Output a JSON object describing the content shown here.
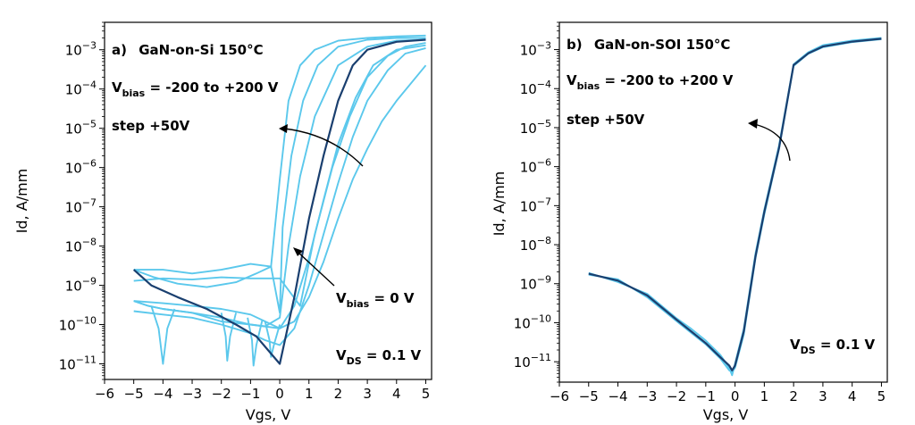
{
  "chart_data": [
    {
      "type": "line",
      "panel": "a",
      "xlabel": "Vgs, V",
      "ylabel": "Id, A/mm",
      "xlim": [
        -6,
        5.2
      ],
      "ylog": true,
      "ylim": [
        4e-12,
        0.005
      ],
      "xticks": [
        -6,
        -5,
        -4,
        -3,
        -2,
        -1,
        0,
        1,
        2,
        3,
        4,
        5
      ],
      "yticks": [
        {
          "value": 1e-11,
          "base": "10",
          "exp": "−11"
        },
        {
          "value": 1e-10,
          "base": "10",
          "exp": "−10"
        },
        {
          "value": 1e-09,
          "base": "10",
          "exp": "−9"
        },
        {
          "value": 1e-08,
          "base": "10",
          "exp": "−8"
        },
        {
          "value": 1e-07,
          "base": "10",
          "exp": "−7"
        },
        {
          "value": 1e-06,
          "base": "10",
          "exp": "−6"
        },
        {
          "value": 1e-05,
          "base": "10",
          "exp": "−5"
        },
        {
          "value": 0.0001,
          "base": "10",
          "exp": "−4"
        },
        {
          "value": 0.001,
          "base": "10",
          "exp": "−3"
        }
      ],
      "annotations": {
        "title_prefix": "a)",
        "title": "GaN-on-Si  150°C",
        "vbias_main": "V",
        "vbias_sub": "bias",
        "vbias_range": " = -200 to +200 V",
        "step": "step +50V",
        "vbias0_main": "V",
        "vbias0_sub": "bias",
        "vbias0_value": " = 0 V",
        "vds_main": "V",
        "vds_sub": "DS",
        "vds_value": " = 0.1 V"
      },
      "colors": {
        "light": "#5bc8ec",
        "dark": "#1a3f6f"
      },
      "series": [
        {
          "x": [
            -5,
            -4.3,
            -3.5,
            -2.5,
            -1.5,
            -0.8,
            -0.3,
            0,
            0.3,
            0.7,
            1.2,
            2,
            3,
            4,
            5
          ],
          "y": [
            2.5e-09,
            1.6e-09,
            1.1e-09,
            9e-10,
            1.2e-09,
            2e-09,
            3e-09,
            5e-07,
            5e-05,
            0.0004,
            0.001,
            0.0017,
            0.002,
            0.0022,
            0.0023
          ],
          "tone": "light"
        },
        {
          "x": [
            -5,
            -4,
            -3,
            -2,
            -1,
            -0.3,
            0,
            0.1,
            0.4,
            0.8,
            1.3,
            2,
            3,
            4,
            5
          ],
          "y": [
            2.5e-09,
            2.5e-09,
            2e-09,
            2.5e-09,
            3.5e-09,
            3e-09,
            2e-10,
            3e-08,
            2e-06,
            5e-05,
            0.0004,
            0.0012,
            0.0018,
            0.002,
            0.002
          ],
          "tone": "light"
        },
        {
          "x": [
            -5,
            -4.5,
            -4,
            -3,
            -2,
            -1,
            -0.5,
            0,
            0.3,
            0.7,
            1.2,
            2,
            3,
            4,
            5
          ],
          "y": [
            4e-10,
            3e-10,
            2.5e-10,
            2e-10,
            1.2e-10,
            1e-10,
            9e-11,
            1.5e-10,
            1e-08,
            6e-07,
            2e-05,
            0.0004,
            0.0012,
            0.0017,
            0.0018
          ],
          "tone": "light"
        },
        {
          "x": [
            -5,
            -4.4,
            -3.5,
            -2.5,
            -1.5,
            -0.8,
            0,
            0.5,
            1,
            1.5,
            2,
            2.5,
            3,
            4,
            5
          ],
          "y": [
            2.5e-09,
            1e-09,
            5e-10,
            2.5e-10,
            1e-10,
            5e-11,
            1e-11,
            5e-10,
            5e-08,
            2e-06,
            5e-05,
            0.0004,
            0.001,
            0.0016,
            0.0018
          ],
          "tone": "dark"
        },
        {
          "x": [
            -5,
            -4,
            -3,
            -2,
            -1,
            0,
            0.7,
            1.2,
            1.8,
            2.4,
            3,
            3.7,
            4.3,
            5
          ],
          "y": [
            1.3e-09,
            1.5e-09,
            1.4e-09,
            1.6e-09,
            1.5e-09,
            1.5e-09,
            3e-10,
            2e-08,
            1e-06,
            2e-05,
            0.0002,
            0.0007,
            0.0012,
            0.0015
          ],
          "tone": "light"
        },
        {
          "x": [
            -5,
            -4,
            -3,
            -2,
            -1,
            -0.5,
            0,
            0.5,
            1,
            1.5,
            2,
            2.6,
            3.2,
            4,
            5
          ],
          "y": [
            4e-10,
            3.5e-10,
            3e-10,
            2.5e-10,
            1.8e-10,
            1.2e-10,
            8e-11,
            3e-10,
            5e-09,
            1.5e-07,
            4e-06,
            6e-05,
            0.0004,
            0.001,
            0.0013
          ],
          "tone": "light"
        },
        {
          "x": [
            -5,
            -4,
            -3,
            -2,
            -1,
            -0.5,
            0,
            0.5,
            1,
            1.5,
            2,
            2.5,
            3,
            3.7,
            4.3,
            5
          ],
          "y": [
            2.2e-10,
            1.8e-10,
            1.5e-10,
            1e-10,
            6e-11,
            4e-11,
            3e-11,
            8e-11,
            1e-09,
            2e-08,
            4e-07,
            6e-06,
            5e-05,
            0.0003,
            0.0008,
            0.0011
          ],
          "tone": "light"
        },
        {
          "x": [
            -5,
            -4.5,
            -4,
            -3,
            -2,
            -1,
            0,
            0.5,
            1,
            1.5,
            2,
            2.5,
            3,
            3.5,
            4,
            5
          ],
          "y": [
            4e-10,
            3e-10,
            2.5e-10,
            2e-10,
            1.5e-10,
            1e-10,
            8e-11,
            1.2e-10,
            5e-10,
            4e-09,
            5e-08,
            5e-07,
            3e-06,
            1.5e-05,
            5e-05,
            0.0004
          ],
          "tone": "light"
        },
        {
          "x": [
            -4.4,
            -4.15,
            -4,
            -3.85,
            -3.6
          ],
          "y": [
            3e-10,
            8e-11,
            1e-11,
            8e-11,
            2.5e-10
          ],
          "tone": "light"
        },
        {
          "x": [
            -2,
            -1.85,
            -1.8,
            -1.7,
            -1.5
          ],
          "y": [
            2e-10,
            5e-11,
            1.2e-11,
            5e-11,
            2e-10
          ],
          "tone": "light"
        },
        {
          "x": [
            -1.1,
            -0.95,
            -0.9,
            -0.8,
            -0.6
          ],
          "y": [
            1.5e-10,
            4e-11,
            9e-12,
            3e-11,
            1.3e-10
          ],
          "tone": "light"
        },
        {
          "x": [
            -0.5,
            -0.35,
            -0.3,
            -0.2,
            0
          ],
          "y": [
            1.2e-10,
            4e-11,
            1.5e-11,
            3e-11,
            1e-10
          ],
          "tone": "light"
        }
      ]
    },
    {
      "type": "line",
      "panel": "b",
      "xlabel": "Vgs, V",
      "ylabel": "Id, A/mm",
      "xlim": [
        -6,
        5.2
      ],
      "ylog": true,
      "ylim": [
        3e-12,
        0.005
      ],
      "xticks": [
        -6,
        -5,
        -4,
        -3,
        -2,
        -1,
        0,
        1,
        2,
        3,
        4,
        5
      ],
      "yticks": [
        {
          "value": 1e-11,
          "base": "10",
          "exp": "−11"
        },
        {
          "value": 1e-10,
          "base": "10",
          "exp": "−10"
        },
        {
          "value": 1e-09,
          "base": "10",
          "exp": "−9"
        },
        {
          "value": 1e-08,
          "base": "10",
          "exp": "−8"
        },
        {
          "value": 1e-07,
          "base": "10",
          "exp": "−7"
        },
        {
          "value": 1e-06,
          "base": "10",
          "exp": "−6"
        },
        {
          "value": 1e-05,
          "base": "10",
          "exp": "−5"
        },
        {
          "value": 0.0001,
          "base": "10",
          "exp": "−4"
        },
        {
          "value": 0.001,
          "base": "10",
          "exp": "−3"
        }
      ],
      "annotations": {
        "title_prefix": "b)",
        "title": "GaN-on-SOI  150°C",
        "vbias_main": "V",
        "vbias_sub": "bias",
        "vbias_range": " = -200 to +200 V",
        "step": "step +50V",
        "vds_main": "V",
        "vds_sub": "DS",
        "vds_value": " = 0.1 V"
      },
      "colors": {
        "light": "#5bc8ec",
        "dark": "#1a3f6f"
      },
      "series": [
        {
          "x": [
            -5,
            -4,
            -3,
            -2,
            -1.5,
            -1,
            -0.5,
            -0.2,
            -0.1,
            0,
            0.3,
            0.7,
            1,
            1.5,
            2,
            2.5,
            3,
            4,
            5
          ],
          "y": [
            1.8e-09,
            1.2e-09,
            5e-10,
            1.2e-10,
            6e-11,
            3e-11,
            1.3e-11,
            8e-12,
            6e-12,
            8e-12,
            6e-11,
            5e-09,
            7e-08,
            3e-06,
            0.0004,
            0.0008,
            0.0012,
            0.0016,
            0.0019
          ],
          "tone": "dark"
        },
        {
          "x": [
            -5,
            -4,
            -3,
            -2,
            -1.5,
            -1,
            -0.5,
            -0.2,
            -0.1,
            0,
            0.3,
            0.7,
            1,
            1.5,
            2,
            2.5,
            3,
            4,
            5
          ],
          "y": [
            1.9e-09,
            1.1e-09,
            5.5e-10,
            1.3e-10,
            7e-11,
            3.5e-11,
            1.5e-11,
            7e-12,
            4.5e-12,
            9e-12,
            7e-11,
            6e-09,
            8e-08,
            3.5e-06,
            0.00042,
            0.00085,
            0.0013,
            0.0017,
            0.002
          ],
          "tone": "light"
        },
        {
          "x": [
            -5,
            -4,
            -3,
            -2,
            -1.5,
            -1,
            -0.5,
            -0.2,
            -0.1,
            0,
            0.3,
            0.7,
            1,
            1.5,
            2,
            2.5,
            3,
            4,
            5
          ],
          "y": [
            1.7e-09,
            1.3e-09,
            4.5e-10,
            1.1e-10,
            5.5e-11,
            2.8e-11,
            1.2e-11,
            6e-12,
            5.5e-12,
            7e-12,
            5e-11,
            4.5e-09,
            6e-08,
            2.8e-06,
            0.00038,
            0.00078,
            0.00115,
            0.00155,
            0.00185
          ],
          "tone": "light"
        }
      ]
    }
  ]
}
